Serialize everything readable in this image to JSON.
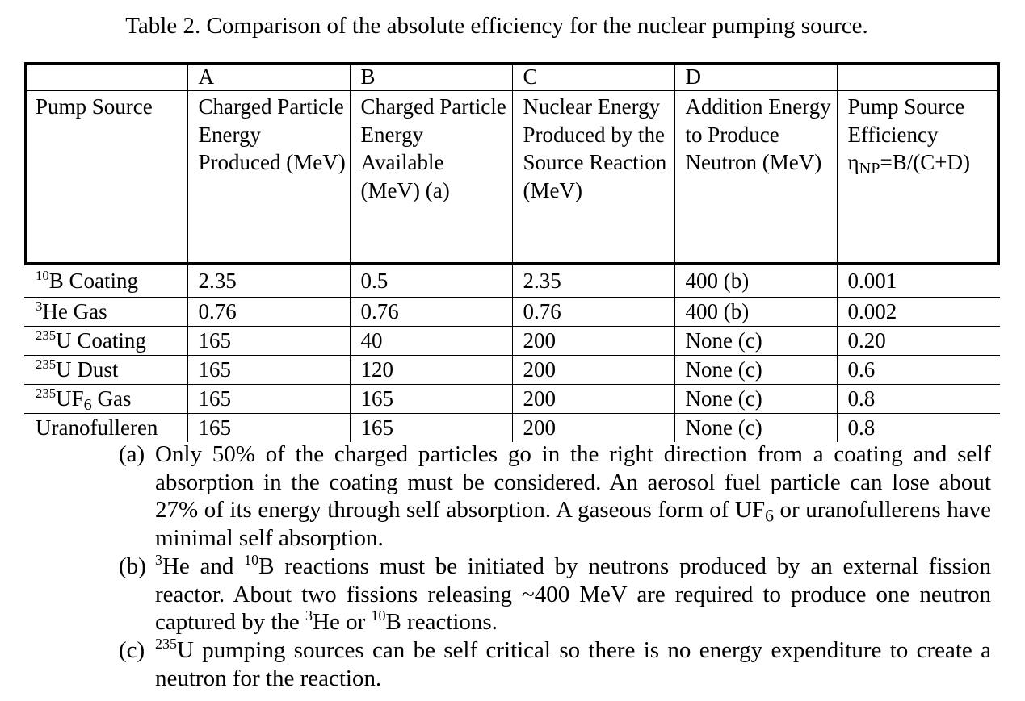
{
  "caption": "Table 2. Comparison of the absolute efficiency for the nuclear pumping source.",
  "table": {
    "column_letters": [
      "",
      "A",
      "B",
      "C",
      "D",
      ""
    ],
    "headers": [
      "Pump Source",
      "Charged Particle Energy Produced (MeV)",
      "Charged Particle Energy Available (MeV) (a)",
      "Nuclear Energy Produced by the Source Reaction (MeV)",
      "Addition Energy to Produce Neutron (MeV)",
      "Pump Source Efficiency"
    ],
    "efficiency_formula": {
      "symbol": "η",
      "subscript": "NP",
      "expression": "=B/(C+D)"
    },
    "rows": [
      {
        "iso": "10",
        "name": "B Coating",
        "sub": "",
        "name_tail": "",
        "a": "2.35",
        "b": "0.5",
        "c": "2.35",
        "d": "400 (b)",
        "eff": "0.001"
      },
      {
        "iso": "3",
        "name": "He Gas",
        "sub": "",
        "name_tail": "",
        "a": "0.76",
        "b": "0.76",
        "c": "0.76",
        "d": "400 (b)",
        "eff": "0.002"
      },
      {
        "iso": "235",
        "name": "U Coating",
        "sub": "",
        "name_tail": "",
        "a": "165",
        "b": "40",
        "c": "200",
        "d": "None (c)",
        "eff": "0.20"
      },
      {
        "iso": "235",
        "name": "U Dust",
        "sub": "",
        "name_tail": "",
        "a": "165",
        "b": "120",
        "c": "200",
        "d": "None (c)",
        "eff": "0.6"
      },
      {
        "iso": "235",
        "name": "UF",
        "sub": "6",
        "name_tail": " Gas",
        "a": "165",
        "b": "165",
        "c": "200",
        "d": "None (c)",
        "eff": "0.8"
      },
      {
        "iso": "",
        "name": "Uranofulleren",
        "sub": "",
        "name_tail": "",
        "a": "165",
        "b": "165",
        "c": "200",
        "d": "None (c)",
        "eff": "0.8"
      }
    ]
  },
  "notes": {
    "a": {
      "label": "(a)",
      "text_1": "Only 50% of the charged particles go in the right direction from a coating and self absorption in the coating must be considered. An aerosol fuel particle can lose about 27% of its energy through self absorption. A gaseous form of UF",
      "sub": "6",
      "text_2": " or uranofullerens have minimal self absorption."
    },
    "b": {
      "label": "(b)",
      "iso_1": "3",
      "text_1": "He and ",
      "iso_2": "10",
      "text_2": "B reactions must be initiated by neutrons produced by an external fission reactor. About two fissions releasing ~400 MeV are required to produce one neutron captured by the ",
      "iso_3": "3",
      "text_3": "He or ",
      "iso_4": "10",
      "text_4": "B reactions."
    },
    "c": {
      "label": "(c)",
      "iso_1": "235",
      "text_1": "U pumping sources can be self critical so there is no energy expenditure to create a neutron for the reaction."
    }
  }
}
